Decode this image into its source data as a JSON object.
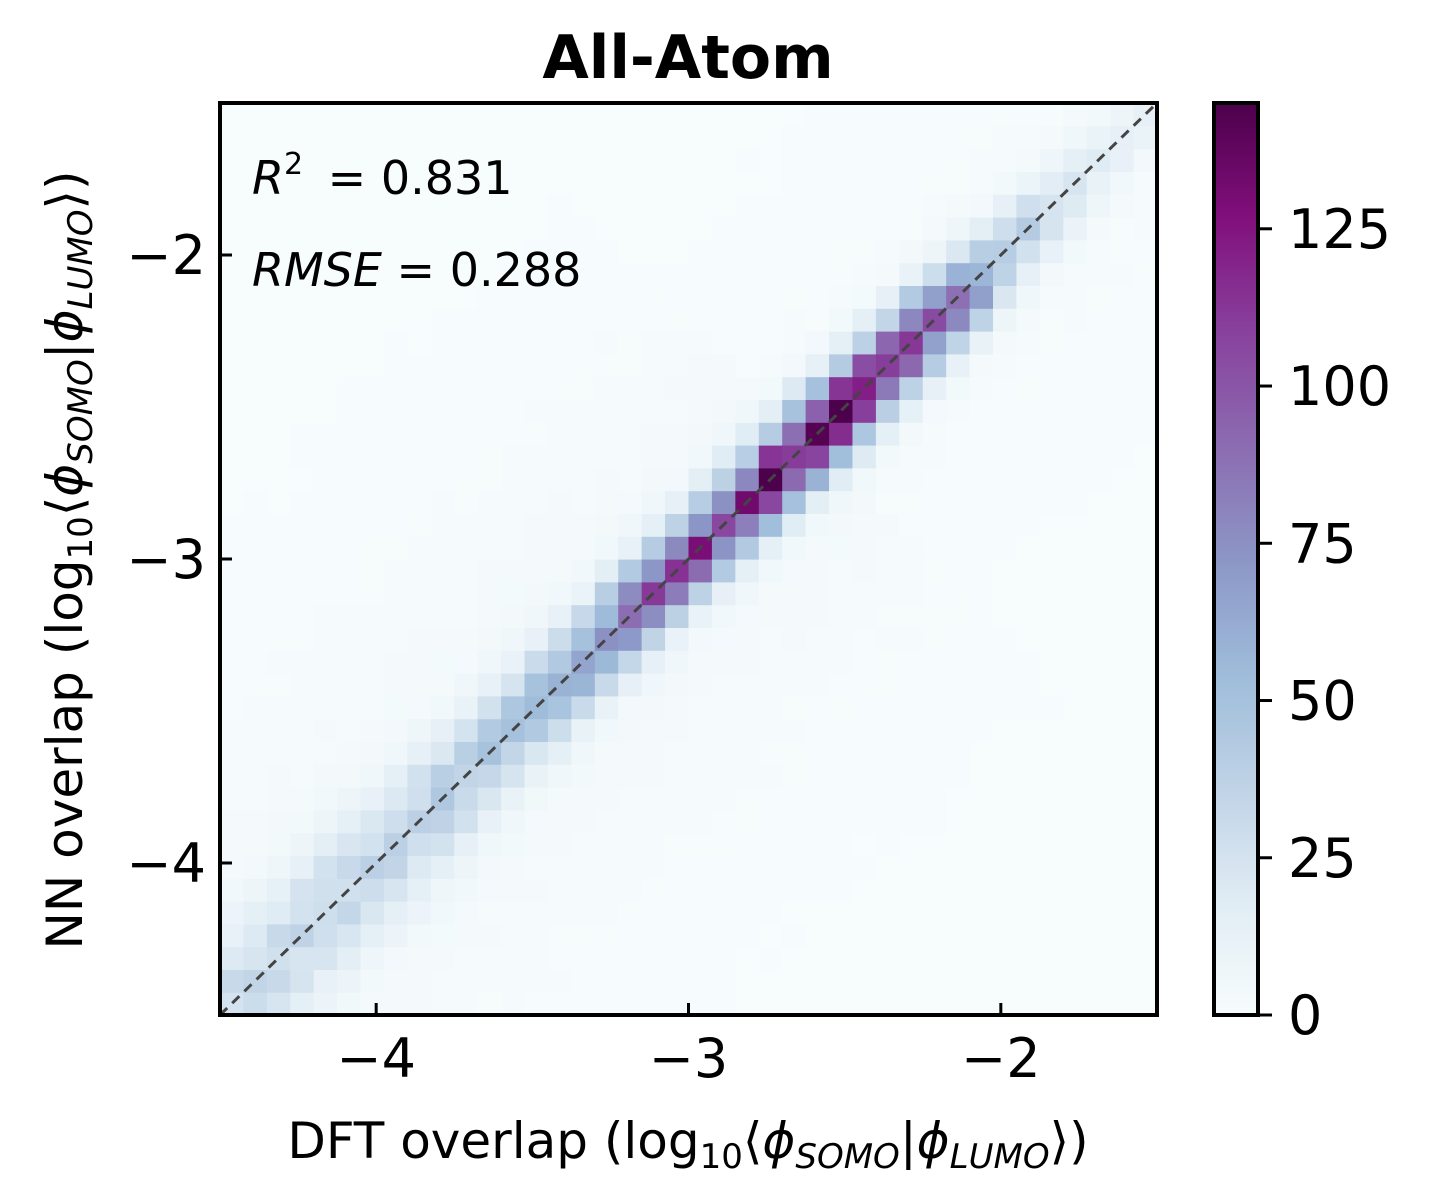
{
  "chart_data": {
    "type": "heatmap",
    "title": "All-Atom",
    "xlabel": {
      "prefix": "DFT overlap (log",
      "sub1": "10",
      "mid": "⟨",
      "phi1": "ϕ",
      "sub2": "SOMO",
      "bar": "|",
      "phi2": "ϕ",
      "sub3": "LUMO",
      "suffix": "⟩)"
    },
    "ylabel": {
      "prefix": "NN overlap  (log",
      "sub1": "10",
      "mid": "⟨",
      "phi1": "ϕ",
      "sub2": "SOMO",
      "bar": "|",
      "phi2": "ϕ",
      "sub3": "LUMO",
      "suffix": "⟩)"
    },
    "xlim": [
      -4.5,
      -1.5
    ],
    "ylim": [
      -4.5,
      -1.5
    ],
    "xticks": [
      -4,
      -3,
      -2
    ],
    "xtick_labels": [
      "−4",
      "−3",
      "−2"
    ],
    "yticks": [
      -4,
      -3,
      -2
    ],
    "ytick_labels": [
      "−4",
      "−3",
      "−2"
    ],
    "bins": 40,
    "diagonal": {
      "style": "dashed",
      "color": "#444444"
    },
    "annotations": {
      "r2": {
        "symbol": "R",
        "power": "2",
        "text": " = 0.831"
      },
      "rmse": {
        "symbol": "RMSE",
        "text": " = 0.288"
      }
    },
    "colorbar": {
      "colormap": "BuPu",
      "min": 0,
      "max": 145,
      "ticks": [
        0,
        25,
        50,
        75,
        100,
        125
      ],
      "tick_labels": [
        "0",
        "25",
        "50",
        "75",
        "100",
        "125"
      ]
    },
    "density_profile": {
      "t": [
        -4.5,
        -4.0,
        -3.6,
        -3.3,
        -3.1,
        -3.0,
        -2.9,
        -2.8,
        -2.6,
        -2.55,
        -2.4,
        -2.2,
        -2.0,
        -1.8,
        -1.5
      ],
      "peak_counts": [
        25,
        28,
        40,
        60,
        95,
        110,
        98,
        115,
        130,
        145,
        110,
        100,
        45,
        20,
        8
      ],
      "spread_std": [
        0.12,
        0.11,
        0.09,
        0.08,
        0.075,
        0.075,
        0.075,
        0.075,
        0.075,
        0.075,
        0.075,
        0.075,
        0.07,
        0.065,
        0.06
      ],
      "background_counts": 3
    }
  }
}
